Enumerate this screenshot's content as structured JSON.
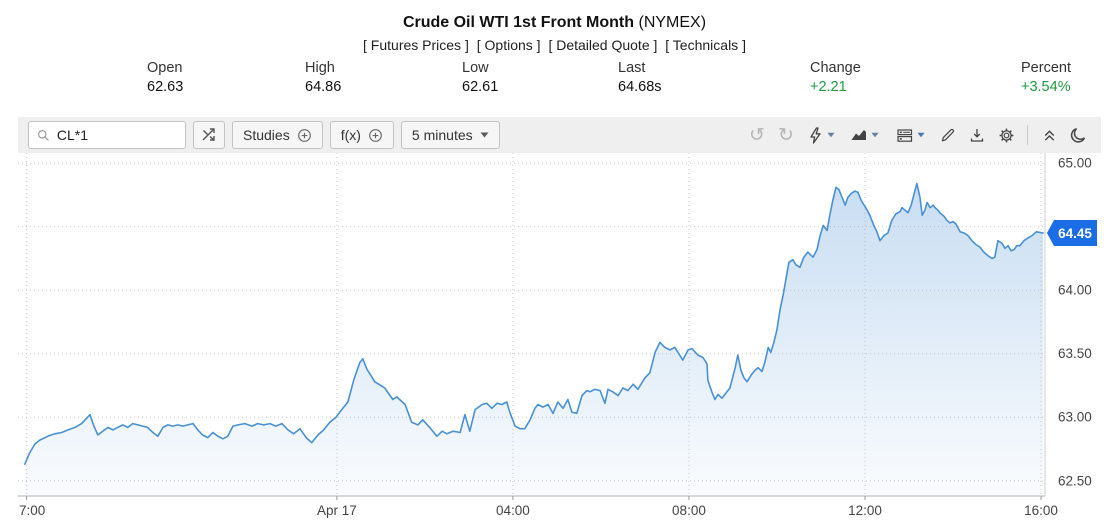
{
  "header": {
    "title": "Crude Oil WTI 1st Front Month",
    "exchange": "(NYMEX)",
    "links": [
      {
        "label": "[ Futures Prices ]"
      },
      {
        "label": "[ Options ]"
      },
      {
        "label": "[ Detailed Quote ]"
      },
      {
        "label": "[ Technicals ]"
      }
    ],
    "stats": [
      {
        "label": "Open",
        "value": "62.63"
      },
      {
        "label": "High",
        "value": "64.86"
      },
      {
        "label": "Low",
        "value": "62.61"
      },
      {
        "label": "Last",
        "value": "64.68s"
      },
      {
        "label": "Change",
        "value": "+2.21",
        "positive": true
      },
      {
        "label": "Percent",
        "value": "+3.54%",
        "positive": true
      }
    ]
  },
  "toolbar": {
    "search_value": "CL*1",
    "studies_label": "Studies",
    "fx_label": "f(x)",
    "timeframe_label": "5 minutes",
    "glyphs": {
      "undo": "↺",
      "redo": "↻"
    }
  },
  "colors": {
    "positive_green": "#1e9b3e",
    "line_blue": "#4a90d5",
    "tag_blue": "#1a6de5",
    "grid_gray": "#cccccc",
    "axis_text": "#444444",
    "toolbar_bg": "#efefef"
  },
  "chart_data": {
    "type": "area",
    "title": "Crude Oil WTI 1st Front Month (NYMEX), 5 minutes",
    "x_unit": "hours relative to Apr 17 00:00",
    "x_range": [
      -7.2,
      16.09
    ],
    "y_range": [
      62.38,
      65.08
    ],
    "grid": true,
    "x_ticks": [
      {
        "t": -7.05,
        "label": "7:00",
        "align": "start"
      },
      {
        "t": 0,
        "label": "Apr 17"
      },
      {
        "t": 4,
        "label": "04:00"
      },
      {
        "t": 8,
        "label": "08:00"
      },
      {
        "t": 12,
        "label": "12:00"
      },
      {
        "t": 16,
        "label": "16:00"
      }
    ],
    "y_ticks": [
      65.0,
      64.5,
      64.0,
      63.5,
      63.0,
      62.5
    ],
    "last_price_label": "64.45",
    "last_price": 64.45,
    "points": [
      [
        -7.09,
        62.63
      ],
      [
        -6.98,
        62.72
      ],
      [
        -6.86,
        62.79
      ],
      [
        -6.75,
        62.82
      ],
      [
        -6.57,
        62.85
      ],
      [
        -6.41,
        62.87
      ],
      [
        -6.25,
        62.88
      ],
      [
        -6.11,
        62.9
      ],
      [
        -5.95,
        62.92
      ],
      [
        -5.8,
        62.95
      ],
      [
        -5.61,
        63.02
      ],
      [
        -5.52,
        62.93
      ],
      [
        -5.43,
        62.86
      ],
      [
        -5.32,
        62.89
      ],
      [
        -5.2,
        62.92
      ],
      [
        -5.09,
        62.9
      ],
      [
        -4.98,
        62.92
      ],
      [
        -4.86,
        62.94
      ],
      [
        -4.75,
        62.92
      ],
      [
        -4.64,
        62.95
      ],
      [
        -4.52,
        62.94
      ],
      [
        -4.41,
        62.93
      ],
      [
        -4.3,
        62.92
      ],
      [
        -4.18,
        62.88
      ],
      [
        -4.07,
        62.85
      ],
      [
        -3.95,
        62.92
      ],
      [
        -3.84,
        62.94
      ],
      [
        -3.73,
        62.93
      ],
      [
        -3.61,
        62.94
      ],
      [
        -3.5,
        62.93
      ],
      [
        -3.39,
        62.94
      ],
      [
        -3.27,
        62.95
      ],
      [
        -3.16,
        62.9
      ],
      [
        -3.05,
        62.86
      ],
      [
        -2.93,
        62.84
      ],
      [
        -2.82,
        62.88
      ],
      [
        -2.7,
        62.85
      ],
      [
        -2.59,
        62.83
      ],
      [
        -2.48,
        62.85
      ],
      [
        -2.36,
        62.93
      ],
      [
        -2.25,
        62.94
      ],
      [
        -2.09,
        62.95
      ],
      [
        -1.93,
        62.93
      ],
      [
        -1.8,
        62.95
      ],
      [
        -1.66,
        62.94
      ],
      [
        -1.52,
        62.95
      ],
      [
        -1.39,
        62.93
      ],
      [
        -1.25,
        62.95
      ],
      [
        -1.11,
        62.9
      ],
      [
        -0.98,
        62.87
      ],
      [
        -0.84,
        62.91
      ],
      [
        -0.7,
        62.84
      ],
      [
        -0.57,
        62.8
      ],
      [
        -0.43,
        62.86
      ],
      [
        -0.3,
        62.9
      ],
      [
        -0.16,
        62.96
      ],
      [
        -0.02,
        63.0
      ],
      [
        0.11,
        63.06
      ],
      [
        0.25,
        63.12
      ],
      [
        0.39,
        63.3
      ],
      [
        0.52,
        63.43
      ],
      [
        0.59,
        63.46
      ],
      [
        0.68,
        63.38
      ],
      [
        0.77,
        63.33
      ],
      [
        0.86,
        63.28
      ],
      [
        1.09,
        63.23
      ],
      [
        1.27,
        63.14
      ],
      [
        1.36,
        63.16
      ],
      [
        1.55,
        63.1
      ],
      [
        1.7,
        62.96
      ],
      [
        1.84,
        62.94
      ],
      [
        1.95,
        62.98
      ],
      [
        2.11,
        62.92
      ],
      [
        2.27,
        62.85
      ],
      [
        2.39,
        62.89
      ],
      [
        2.5,
        62.87
      ],
      [
        2.64,
        62.89
      ],
      [
        2.8,
        62.88
      ],
      [
        2.91,
        63.02
      ],
      [
        3.02,
        62.89
      ],
      [
        3.14,
        63.06
      ],
      [
        3.3,
        63.1
      ],
      [
        3.41,
        63.11
      ],
      [
        3.52,
        63.07
      ],
      [
        3.64,
        63.11
      ],
      [
        3.75,
        63.1
      ],
      [
        3.86,
        63.12
      ],
      [
        3.93,
        63.04
      ],
      [
        4.05,
        62.93
      ],
      [
        4.16,
        62.91
      ],
      [
        4.27,
        62.91
      ],
      [
        4.39,
        62.98
      ],
      [
        4.5,
        63.07
      ],
      [
        4.57,
        63.1
      ],
      [
        4.68,
        63.08
      ],
      [
        4.8,
        63.1
      ],
      [
        4.91,
        63.03
      ],
      [
        5.02,
        63.12
      ],
      [
        5.14,
        63.07
      ],
      [
        5.25,
        63.14
      ],
      [
        5.34,
        63.04
      ],
      [
        5.45,
        63.03
      ],
      [
        5.57,
        63.17
      ],
      [
        5.68,
        63.21
      ],
      [
        5.75,
        63.2
      ],
      [
        5.86,
        63.22
      ],
      [
        5.98,
        63.21
      ],
      [
        6.09,
        63.11
      ],
      [
        6.16,
        63.22
      ],
      [
        6.27,
        63.2
      ],
      [
        6.39,
        63.17
      ],
      [
        6.5,
        63.23
      ],
      [
        6.61,
        63.21
      ],
      [
        6.73,
        63.26
      ],
      [
        6.84,
        63.22
      ],
      [
        7.0,
        63.31
      ],
      [
        7.11,
        63.35
      ],
      [
        7.23,
        63.51
      ],
      [
        7.34,
        63.59
      ],
      [
        7.45,
        63.55
      ],
      [
        7.57,
        63.53
      ],
      [
        7.68,
        63.55
      ],
      [
        7.86,
        63.45
      ],
      [
        7.98,
        63.53
      ],
      [
        8.07,
        63.54
      ],
      [
        8.2,
        63.49
      ],
      [
        8.32,
        63.47
      ],
      [
        8.41,
        63.42
      ],
      [
        8.43,
        63.29
      ],
      [
        8.52,
        63.2
      ],
      [
        8.59,
        63.14
      ],
      [
        8.66,
        63.18
      ],
      [
        8.75,
        63.15
      ],
      [
        8.84,
        63.19
      ],
      [
        8.93,
        63.23
      ],
      [
        9.05,
        63.39
      ],
      [
        9.11,
        63.49
      ],
      [
        9.18,
        63.37
      ],
      [
        9.25,
        63.31
      ],
      [
        9.32,
        63.28
      ],
      [
        9.41,
        63.33
      ],
      [
        9.5,
        63.37
      ],
      [
        9.57,
        63.39
      ],
      [
        9.66,
        63.36
      ],
      [
        9.73,
        63.44
      ],
      [
        9.8,
        63.55
      ],
      [
        9.86,
        63.51
      ],
      [
        9.93,
        63.59
      ],
      [
        10.0,
        63.69
      ],
      [
        10.07,
        63.85
      ],
      [
        10.14,
        63.96
      ],
      [
        10.2,
        64.08
      ],
      [
        10.27,
        64.22
      ],
      [
        10.36,
        64.24
      ],
      [
        10.43,
        64.2
      ],
      [
        10.52,
        64.18
      ],
      [
        10.61,
        64.26
      ],
      [
        10.7,
        64.3
      ],
      [
        10.82,
        64.26
      ],
      [
        10.91,
        64.32
      ],
      [
        10.98,
        64.43
      ],
      [
        11.05,
        64.51
      ],
      [
        11.14,
        64.47
      ],
      [
        11.2,
        64.59
      ],
      [
        11.27,
        64.71
      ],
      [
        11.34,
        64.81
      ],
      [
        11.41,
        64.79
      ],
      [
        11.48,
        64.73
      ],
      [
        11.55,
        64.67
      ],
      [
        11.61,
        64.73
      ],
      [
        11.68,
        64.76
      ],
      [
        11.77,
        64.78
      ],
      [
        11.84,
        64.77
      ],
      [
        11.91,
        64.71
      ],
      [
        11.98,
        64.67
      ],
      [
        12.05,
        64.63
      ],
      [
        12.11,
        64.59
      ],
      [
        12.2,
        64.51
      ],
      [
        12.27,
        64.46
      ],
      [
        12.34,
        64.39
      ],
      [
        12.43,
        64.43
      ],
      [
        12.52,
        64.45
      ],
      [
        12.61,
        64.55
      ],
      [
        12.7,
        64.6
      ],
      [
        12.8,
        64.62
      ],
      [
        12.84,
        64.65
      ],
      [
        12.91,
        64.63
      ],
      [
        12.98,
        64.61
      ],
      [
        13.05,
        64.67
      ],
      [
        13.11,
        64.75
      ],
      [
        13.18,
        64.84
      ],
      [
        13.25,
        64.73
      ],
      [
        13.3,
        64.59
      ],
      [
        13.36,
        64.63
      ],
      [
        13.41,
        64.69
      ],
      [
        13.48,
        64.65
      ],
      [
        13.55,
        64.67
      ],
      [
        13.59,
        64.65
      ],
      [
        13.66,
        64.63
      ],
      [
        13.7,
        64.61
      ],
      [
        13.8,
        64.58
      ],
      [
        13.86,
        64.55
      ],
      [
        13.93,
        64.53
      ],
      [
        14.0,
        64.54
      ],
      [
        14.07,
        64.52
      ],
      [
        14.16,
        64.46
      ],
      [
        14.25,
        64.45
      ],
      [
        14.34,
        64.43
      ],
      [
        14.43,
        64.39
      ],
      [
        14.52,
        64.36
      ],
      [
        14.61,
        64.34
      ],
      [
        14.7,
        64.3
      ],
      [
        14.8,
        64.27
      ],
      [
        14.89,
        64.25
      ],
      [
        14.95,
        64.26
      ],
      [
        15.02,
        64.39
      ],
      [
        15.11,
        64.37
      ],
      [
        15.18,
        64.33
      ],
      [
        15.25,
        64.35
      ],
      [
        15.32,
        64.31
      ],
      [
        15.39,
        64.32
      ],
      [
        15.45,
        64.35
      ],
      [
        15.52,
        64.35
      ],
      [
        15.61,
        64.39
      ],
      [
        15.7,
        64.41
      ],
      [
        15.8,
        64.43
      ],
      [
        15.89,
        64.46
      ],
      [
        16.05,
        64.45
      ]
    ]
  }
}
